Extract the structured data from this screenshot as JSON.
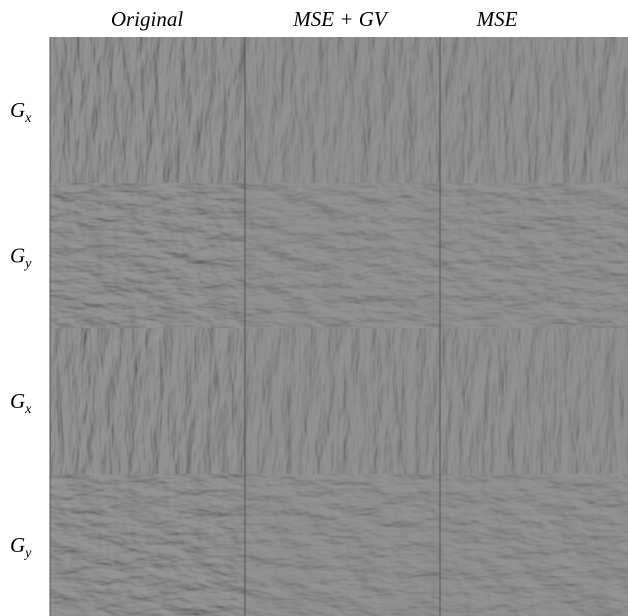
{
  "columns": [
    "Original",
    "MSE + GV",
    "MSE"
  ],
  "rows": [
    {
      "symbol": "G",
      "subscript": "x"
    },
    {
      "symbol": "G",
      "subscript": "y"
    },
    {
      "symbol": "G",
      "subscript": "x"
    },
    {
      "symbol": "G",
      "subscript": "y"
    }
  ]
}
